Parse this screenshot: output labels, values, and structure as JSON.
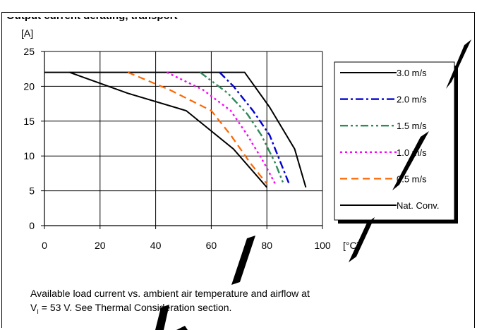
{
  "header": {
    "title": "Output current derating, transport"
  },
  "chart_data": {
    "type": "line",
    "ylabel": "[A]",
    "xlabel": "[°C]",
    "xlim": [
      0,
      100
    ],
    "ylim": [
      0,
      25
    ],
    "xticks": [
      0,
      20,
      40,
      60,
      80,
      100
    ],
    "yticks": [
      0,
      5,
      10,
      15,
      20,
      25
    ],
    "grid": true,
    "legend_position": "right",
    "series": [
      {
        "name": "3.0 m/s",
        "color": "#000000",
        "style": "solid",
        "points": [
          [
            0,
            22
          ],
          [
            72,
            22
          ],
          [
            81,
            17
          ],
          [
            90,
            11
          ],
          [
            94,
            5.5
          ]
        ]
      },
      {
        "name": "2.0 m/s",
        "color": "#0000d0",
        "style": "dashdot",
        "points": [
          [
            63,
            22
          ],
          [
            68,
            20
          ],
          [
            75,
            16.5
          ],
          [
            81,
            13
          ],
          [
            85,
            9
          ],
          [
            88,
            6
          ]
        ]
      },
      {
        "name": "1.5 m/s",
        "color": "#2e8b57",
        "style": "dashdotdot",
        "points": [
          [
            56,
            22
          ],
          [
            66,
            19
          ],
          [
            73,
            16
          ],
          [
            78,
            13
          ],
          [
            83,
            9
          ],
          [
            86,
            6
          ]
        ]
      },
      {
        "name": "1.0 m/s",
        "color": "#ff00ff",
        "style": "dotted",
        "points": [
          [
            44,
            22
          ],
          [
            57,
            19.5
          ],
          [
            67,
            16.5
          ],
          [
            73,
            13
          ],
          [
            79,
            9
          ],
          [
            83,
            6
          ]
        ]
      },
      {
        "name": "0.5 m/s",
        "color": "#ff6600",
        "style": "dashed",
        "points": [
          [
            30,
            22
          ],
          [
            45,
            19.5
          ],
          [
            60,
            16.5
          ],
          [
            67,
            13
          ],
          [
            74,
            9
          ],
          [
            80,
            6
          ]
        ]
      },
      {
        "name": "Nat. Conv.",
        "color": "#000000",
        "style": "solid",
        "points": [
          [
            9,
            22
          ],
          [
            30,
            19
          ],
          [
            51,
            16.5
          ],
          [
            68,
            11
          ],
          [
            80,
            5.5
          ]
        ]
      }
    ]
  },
  "caption": {
    "line1": "Available load current vs. ambient air temperature and airflow at",
    "line2_prefix": "V",
    "line2_sub": "I",
    "line2_suffix": " = 53 V. See Thermal Consideration section."
  },
  "watermark": {
    "text": "CONFIDENTIAL",
    "color": "#000000"
  }
}
